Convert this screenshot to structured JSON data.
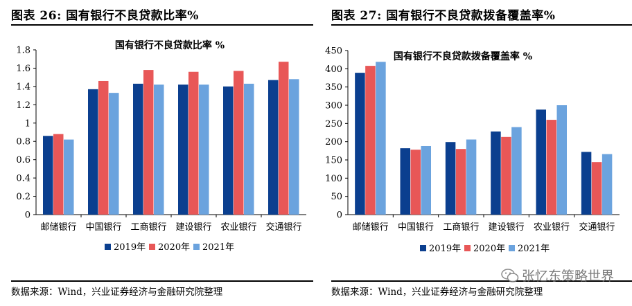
{
  "colors": {
    "s2019": "#0b3f8f",
    "s2020": "#e85757",
    "s2021": "#6ba3de"
  },
  "left": {
    "fig_title": "图表 26:  国有银行不良贷款比率%",
    "source": "数据来源：Wind，兴业证券经济与金融研究院整理"
  },
  "right": {
    "fig_title": "图表 27:  国有银行不良贷款拨备覆盖率%",
    "source": "数据来源：Wind，兴业证券经济与金融研究院整理"
  },
  "watermark": "张忆东策略世界",
  "chart_data": [
    {
      "type": "bar",
      "title": "国有银行不良贷款比率 %",
      "categories": [
        "邮储银行",
        "中国银行",
        "工商银行",
        "建设银行",
        "农业银行",
        "交通银行"
      ],
      "series": [
        {
          "name": "2019年",
          "values": [
            0.86,
            1.37,
            1.43,
            1.42,
            1.4,
            1.47
          ]
        },
        {
          "name": "2020年",
          "values": [
            0.88,
            1.46,
            1.58,
            1.56,
            1.57,
            1.67
          ]
        },
        {
          "name": "2021年",
          "values": [
            0.82,
            1.33,
            1.42,
            1.42,
            1.43,
            1.48
          ]
        }
      ],
      "yticks": [
        "0",
        "0.2",
        "0.4",
        "0.6",
        "0.8",
        "1",
        "1.2",
        "1.4",
        "1.6",
        "1.8"
      ],
      "ylim": [
        0,
        1.8
      ],
      "xlabel": "",
      "ylabel": ""
    },
    {
      "type": "bar",
      "title": "国有银行不良贷款拨备覆盖率 %",
      "categories": [
        "邮储银行",
        "中国银行",
        "工商银行",
        "建设银行",
        "农业银行",
        "交通银行"
      ],
      "series": [
        {
          "name": "2019年",
          "values": [
            389,
            182,
            199,
            228,
            288,
            172
          ]
        },
        {
          "name": "2020年",
          "values": [
            408,
            178,
            180,
            213,
            260,
            144
          ]
        },
        {
          "name": "2021年",
          "values": [
            419,
            188,
            206,
            240,
            300,
            166
          ]
        }
      ],
      "yticks": [
        "0",
        "50",
        "100",
        "150",
        "200",
        "250",
        "300",
        "350",
        "400",
        "450"
      ],
      "ylim": [
        0,
        450
      ],
      "xlabel": "",
      "ylabel": ""
    }
  ]
}
